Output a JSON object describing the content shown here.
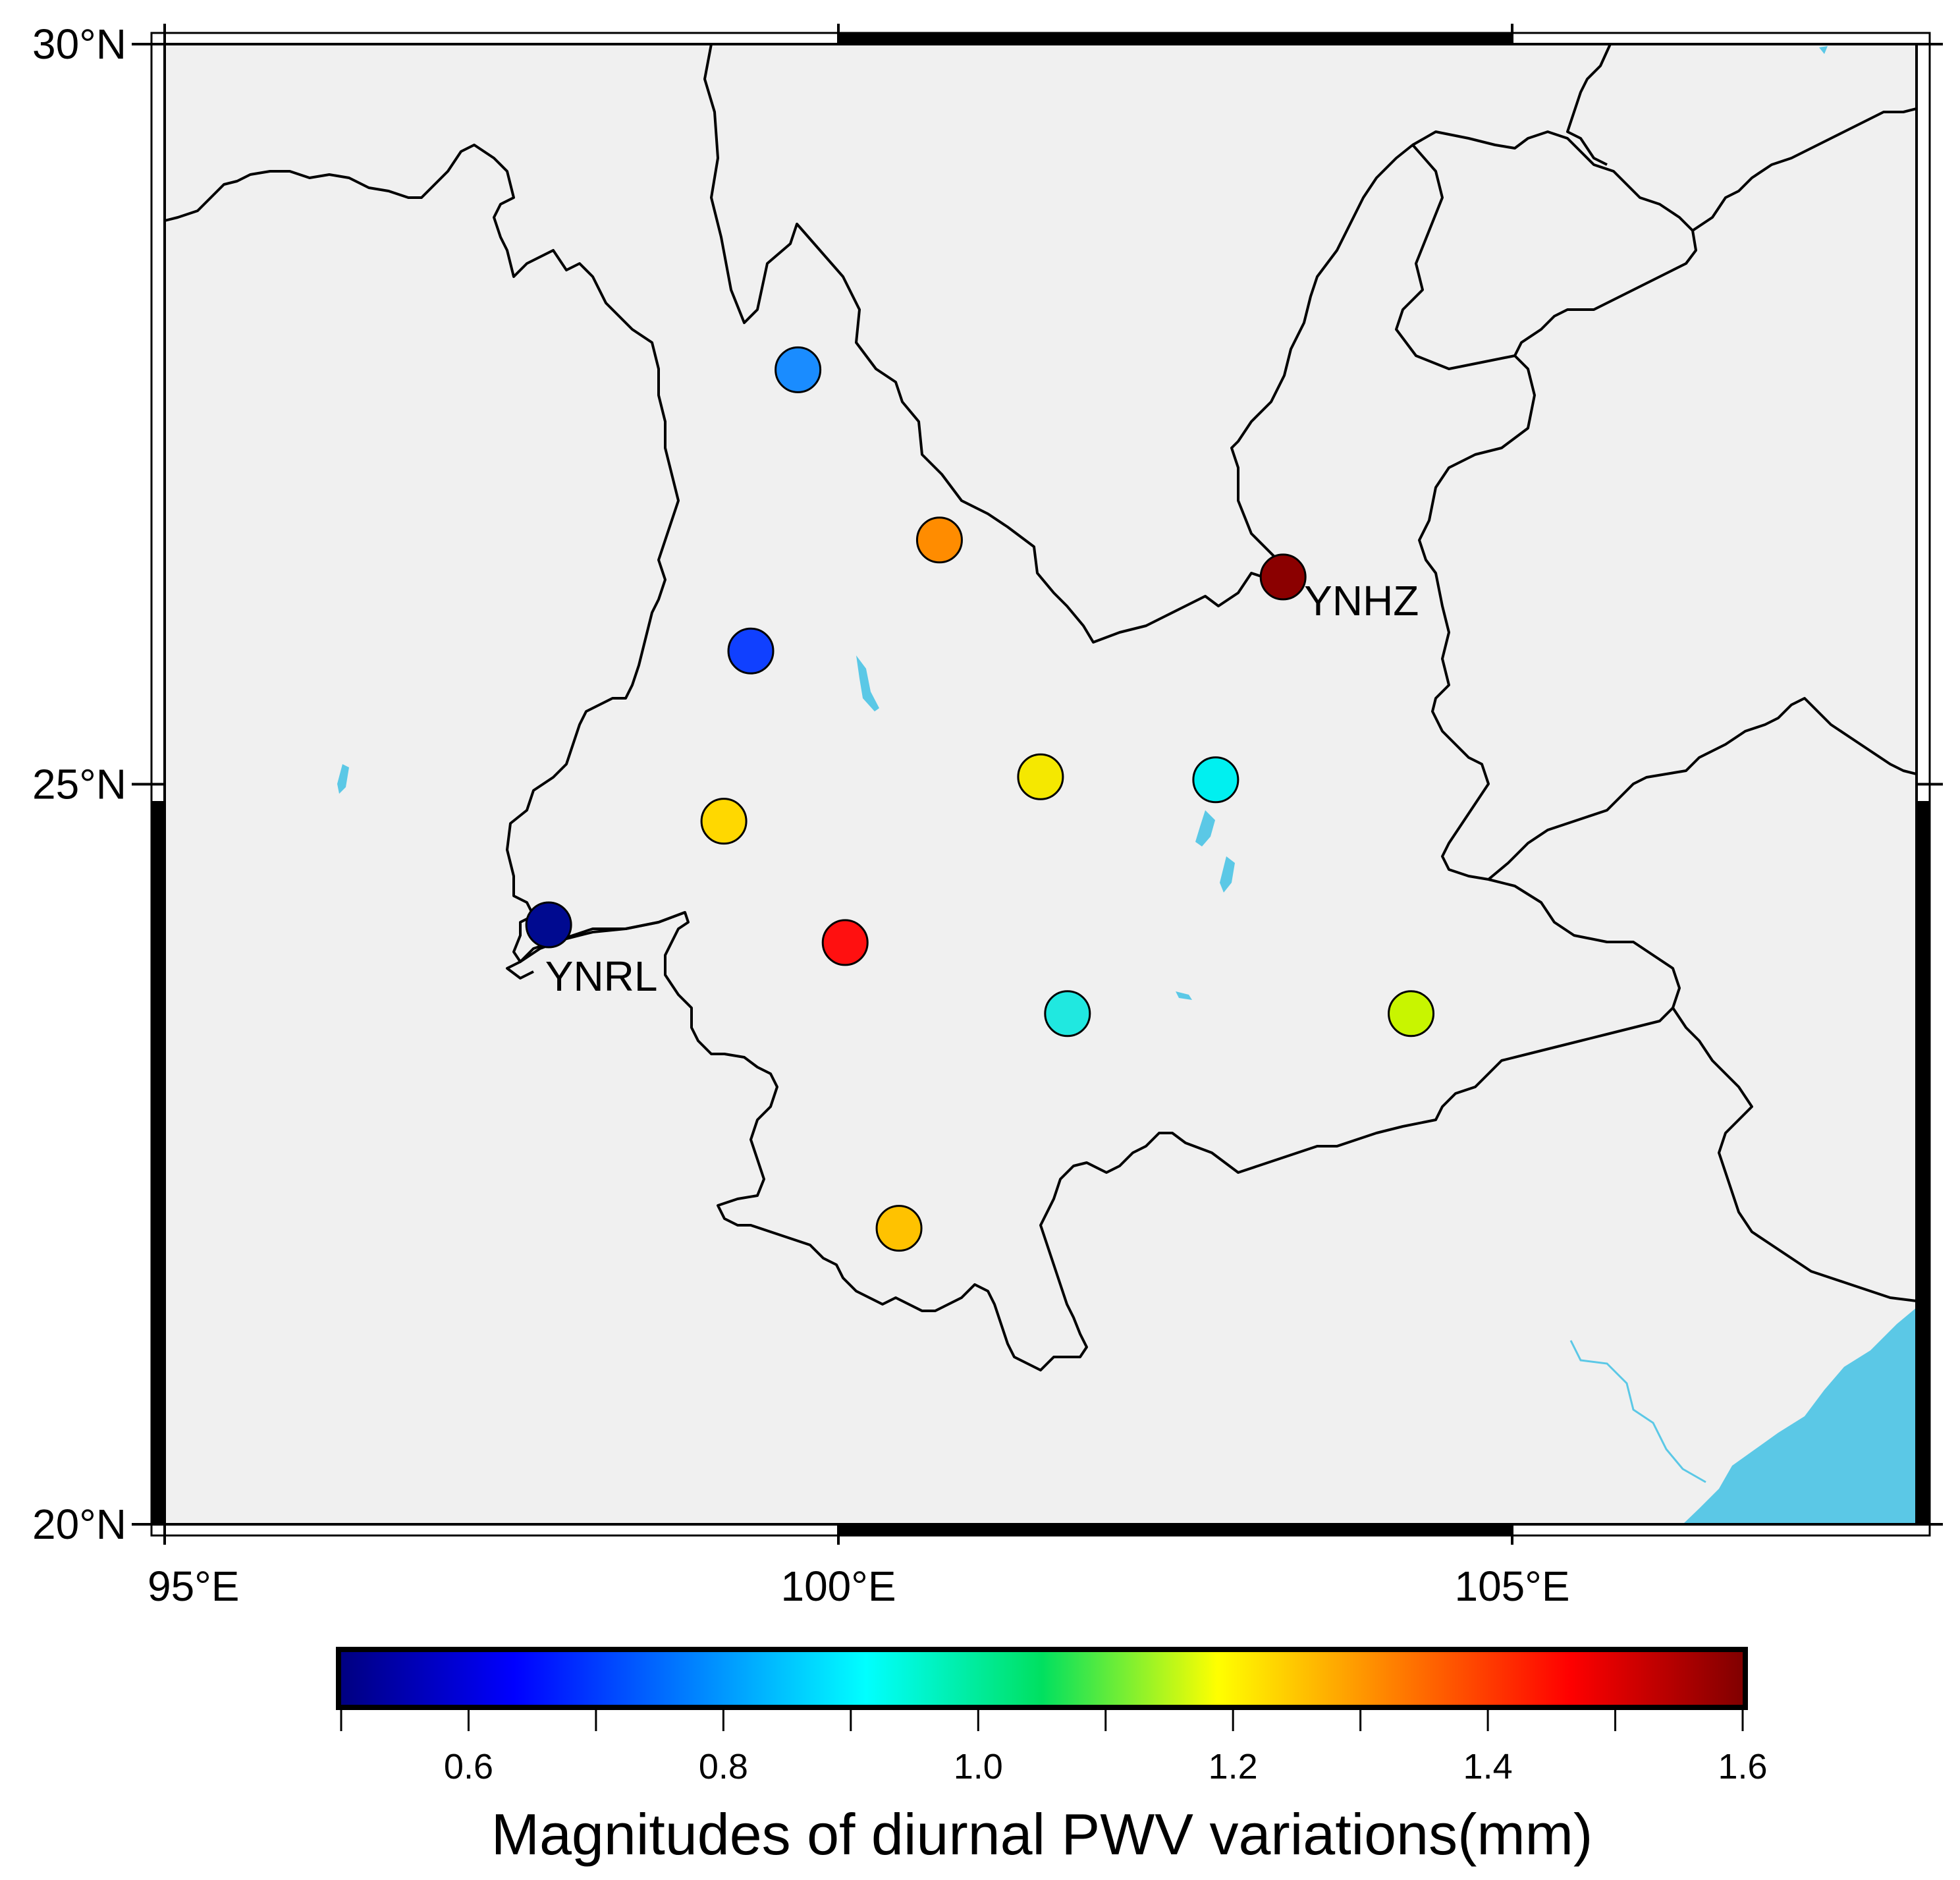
{
  "map": {
    "lon_range": [
      95,
      108
    ],
    "lat_range": [
      20,
      30
    ],
    "land_color": "#f0f0f0",
    "water_color": "#5bc8e6",
    "x_ticks": [
      {
        "lon": 95,
        "label": "95°E"
      },
      {
        "lon": 100,
        "label": "100°E"
      },
      {
        "lon": 105,
        "label": "105°E"
      }
    ],
    "y_ticks": [
      {
        "lat": 20,
        "label": "20°N"
      },
      {
        "lat": 25,
        "label": "25°N"
      },
      {
        "lat": 30,
        "label": "30°N"
      }
    ],
    "stations": [
      {
        "lon": 99.7,
        "lat": 27.8,
        "value": 0.8,
        "color": "#1a8cff"
      },
      {
        "lon": 100.75,
        "lat": 26.65,
        "value": 1.33,
        "color": "#ff8c00"
      },
      {
        "lon": 99.35,
        "lat": 25.9,
        "value": 0.66,
        "color": "#1040ff"
      },
      {
        "lon": 103.3,
        "lat": 26.4,
        "value": 1.6,
        "color": "#8b0000",
        "name": "YNHZ"
      },
      {
        "lon": 101.5,
        "lat": 25.05,
        "value": 1.2,
        "color": "#f5e800"
      },
      {
        "lon": 102.8,
        "lat": 25.03,
        "value": 0.95,
        "color": "#00f0f0"
      },
      {
        "lon": 99.15,
        "lat": 24.75,
        "value": 1.25,
        "color": "#ffd800"
      },
      {
        "lon": 97.85,
        "lat": 24.05,
        "value": 0.55,
        "color": "#000a90",
        "name": "YNRL"
      },
      {
        "lon": 100.05,
        "lat": 23.93,
        "value": 1.45,
        "color": "#ff1010"
      },
      {
        "lon": 101.7,
        "lat": 23.45,
        "value": 0.95,
        "color": "#20e8e0"
      },
      {
        "lon": 104.25,
        "lat": 23.45,
        "value": 1.15,
        "color": "#c8f500"
      },
      {
        "lon": 100.45,
        "lat": 22.0,
        "value": 1.28,
        "color": "#ffc200"
      }
    ]
  },
  "colorbar": {
    "min": 0.5,
    "max": 1.6,
    "minor_ticks": [
      0.5,
      0.6,
      0.7,
      0.8,
      0.9,
      1.0,
      1.1,
      1.2,
      1.3,
      1.4,
      1.5,
      1.6
    ],
    "labels": [
      "0.6",
      "0.8",
      "1.0",
      "1.2",
      "1.4",
      "1.6"
    ],
    "label_values": [
      0.6,
      0.8,
      1.0,
      1.2,
      1.4,
      1.6
    ],
    "title": "Magnitudes of diurnal PWV variations(mm)"
  }
}
